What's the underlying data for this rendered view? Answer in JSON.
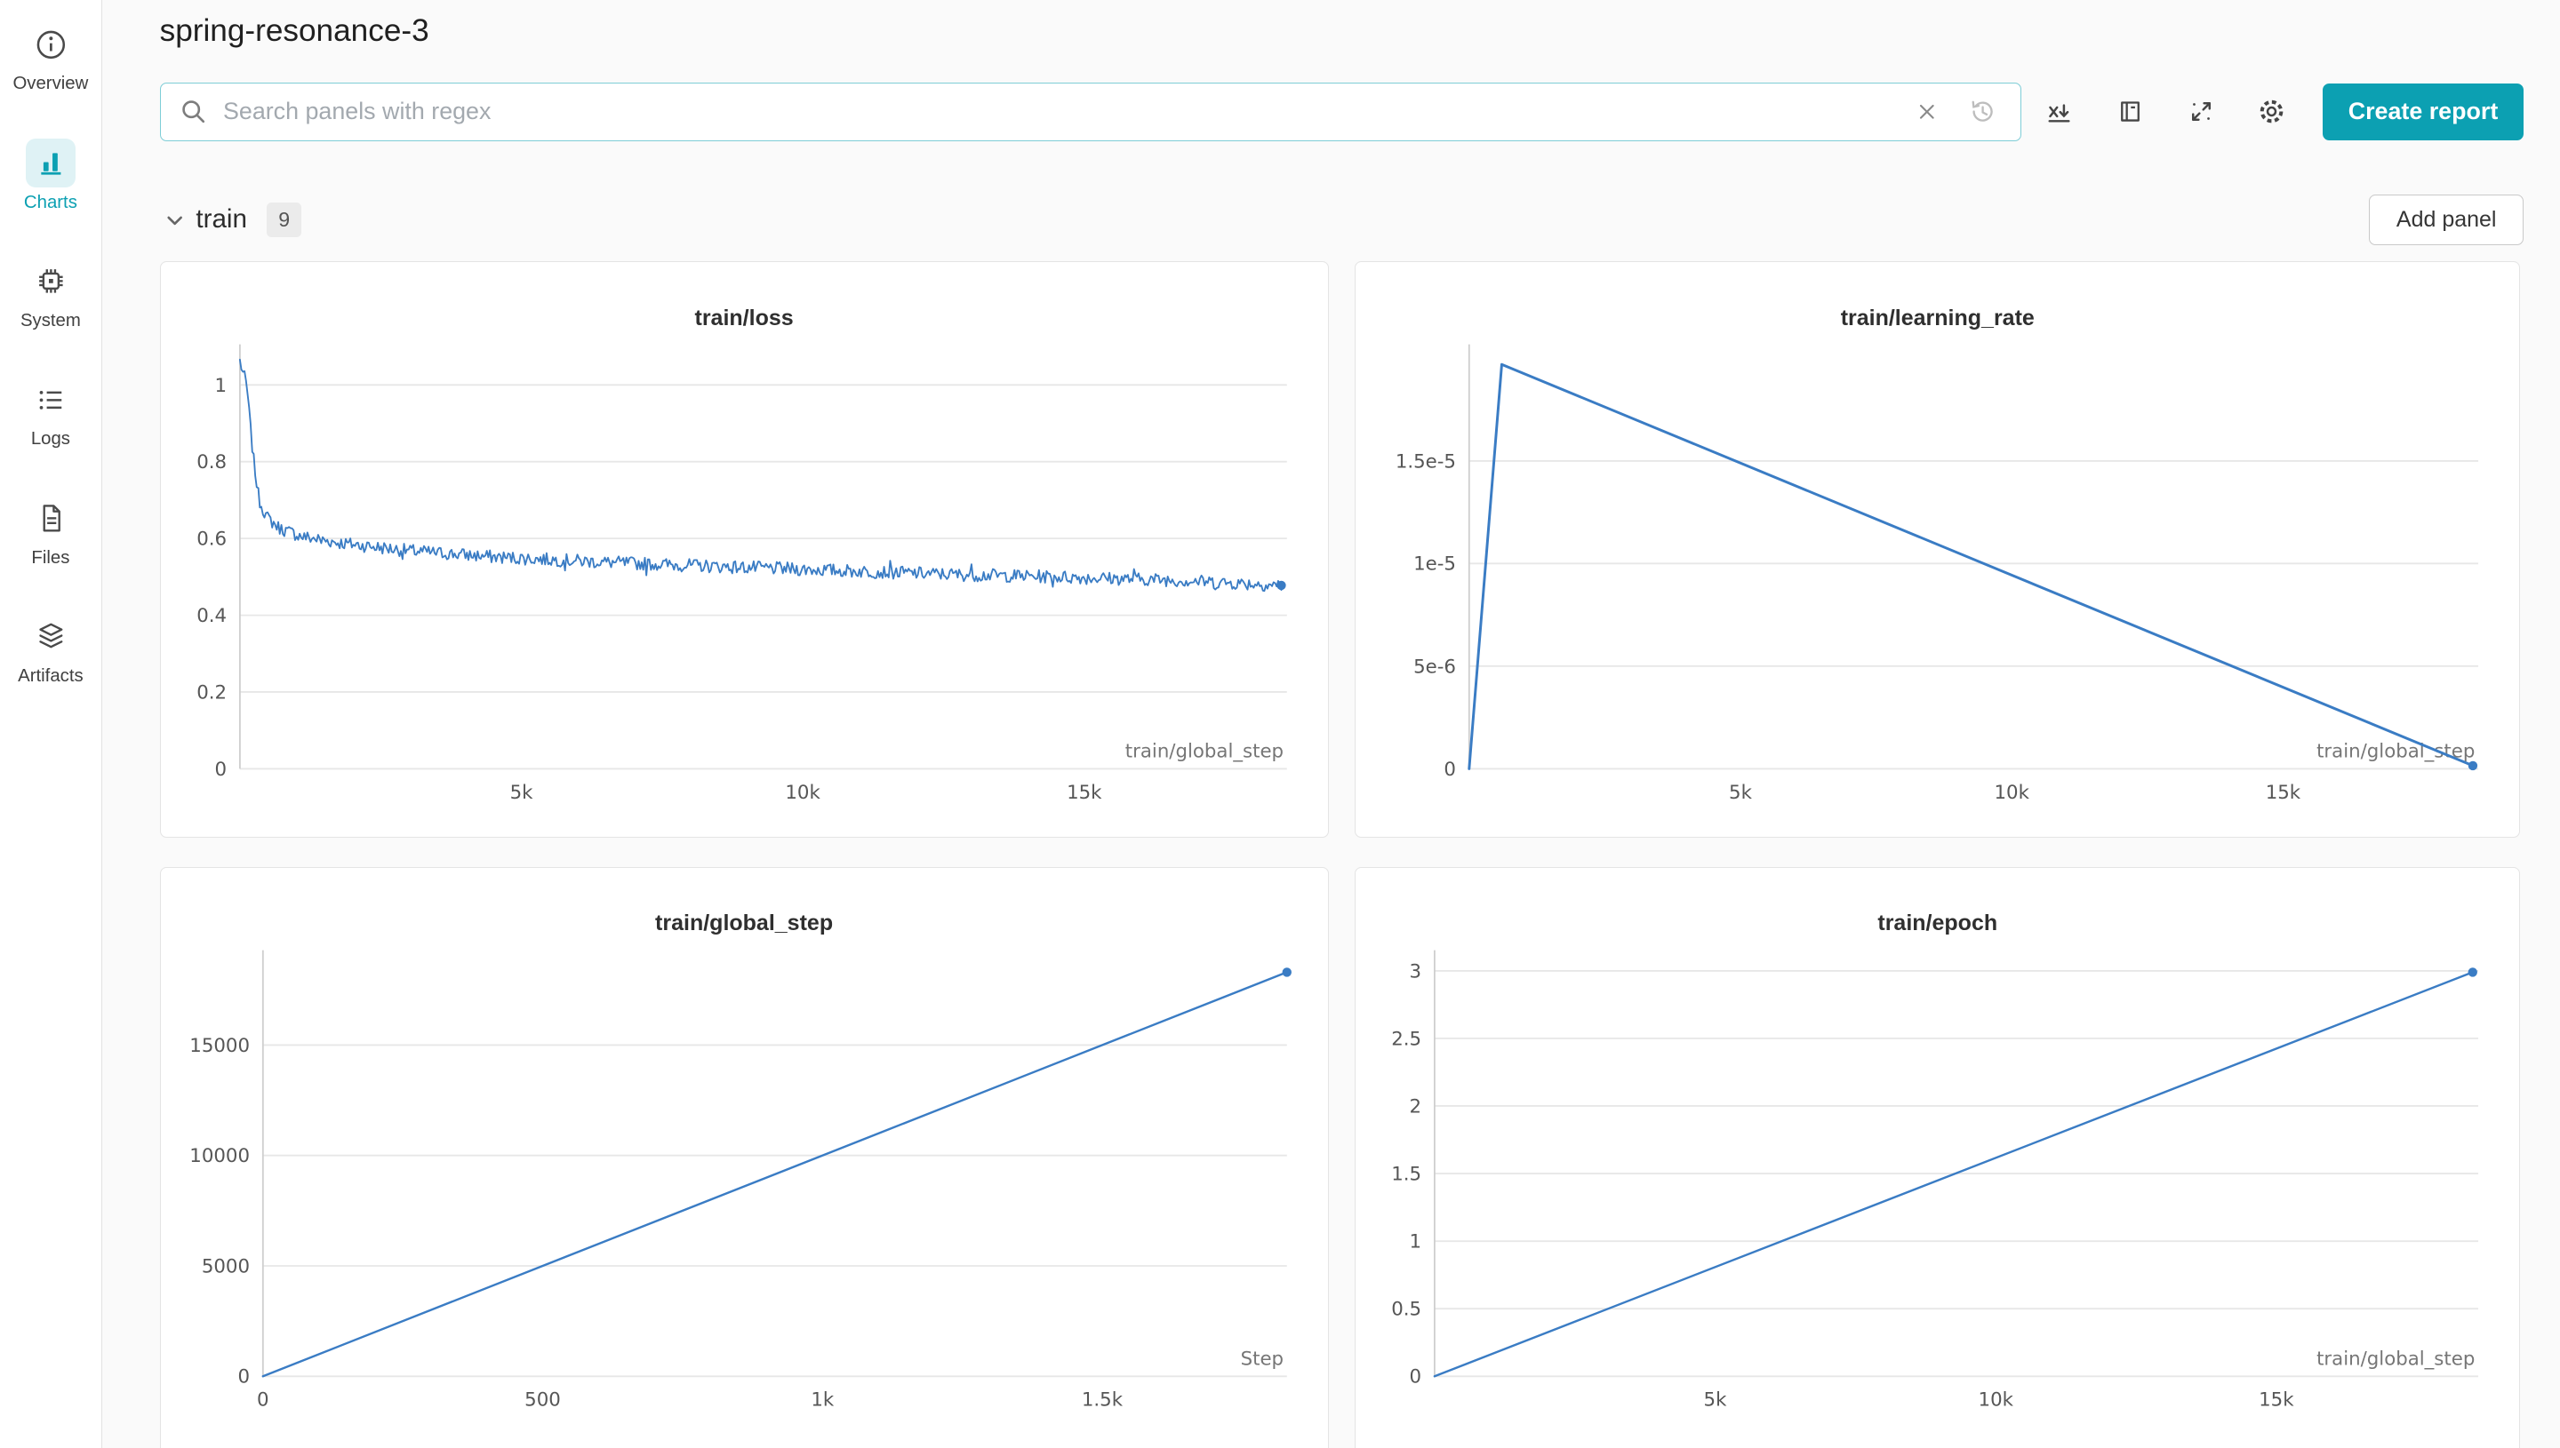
{
  "colors": {
    "accent": "#0ca0b2",
    "accent_bg": "#dff2f5",
    "line": "#3a7cc4",
    "page_bg": "#fafafa",
    "panel_border": "#e4e4e4"
  },
  "header": {
    "title": "spring-resonance-3"
  },
  "sidebar": {
    "items": [
      {
        "label": "Overview",
        "icon": "info-icon",
        "selected": false
      },
      {
        "label": "Charts",
        "icon": "bar-chart-icon",
        "selected": true
      },
      {
        "label": "System",
        "icon": "cpu-icon",
        "selected": false
      },
      {
        "label": "Logs",
        "icon": "list-icon",
        "selected": false
      },
      {
        "label": "Files",
        "icon": "document-icon",
        "selected": false
      },
      {
        "label": "Artifacts",
        "icon": "layers-icon",
        "selected": false
      }
    ]
  },
  "toolbar": {
    "search_placeholder": "Search panels with regex",
    "create_report_label": "Create report",
    "icons": [
      "search-icon",
      "clear-icon",
      "history-icon",
      "x-axis-icon",
      "panel-gallery-icon",
      "expand-icon",
      "settings-gear-icon"
    ]
  },
  "section": {
    "title": "train",
    "count": "9",
    "add_panel_label": "Add panel"
  },
  "chart_data": [
    {
      "type": "line",
      "title": "train/loss",
      "xlabel": "train/global_step",
      "xlim": [
        0,
        18600
      ],
      "ylim": [
        0,
        1.08
      ],
      "x_ticks": [
        {
          "v": 5000,
          "l": "5k"
        },
        {
          "v": 10000,
          "l": "10k"
        },
        {
          "v": 15000,
          "l": "15k"
        }
      ],
      "y_ticks": [
        {
          "v": 0,
          "l": "0"
        },
        {
          "v": 0.2,
          "l": "0.2"
        },
        {
          "v": 0.4,
          "l": "0.4"
        },
        {
          "v": 0.6,
          "l": "0.6"
        },
        {
          "v": 0.8,
          "l": "0.8"
        },
        {
          "v": 1,
          "l": "1"
        }
      ],
      "keypoints": [
        [
          0,
          1.06
        ],
        [
          120,
          1.0
        ],
        [
          230,
          0.82
        ],
        [
          340,
          0.7
        ],
        [
          480,
          0.655
        ],
        [
          700,
          0.627
        ],
        [
          1100,
          0.605
        ],
        [
          1800,
          0.588
        ],
        [
          3000,
          0.568
        ],
        [
          4500,
          0.552
        ],
        [
          6500,
          0.538
        ],
        [
          8500,
          0.527
        ],
        [
          10500,
          0.517
        ],
        [
          12500,
          0.507
        ],
        [
          14500,
          0.5
        ],
        [
          16500,
          0.492
        ],
        [
          18500,
          0.478
        ]
      ],
      "noise": 0.017,
      "samples": 680,
      "line_width": 1,
      "end_dot": true,
      "grid": "horizontal",
      "legend": "none"
    },
    {
      "type": "line",
      "title": "train/learning_rate",
      "xlabel": "train/global_step",
      "xlim": [
        0,
        18600
      ],
      "ylim": [
        0,
        2.02e-05
      ],
      "x_ticks": [
        {
          "v": 5000,
          "l": "5k"
        },
        {
          "v": 10000,
          "l": "10k"
        },
        {
          "v": 15000,
          "l": "15k"
        }
      ],
      "y_ticks": [
        {
          "v": 0,
          "l": "0"
        },
        {
          "v": 5e-06,
          "l": "5e-6"
        },
        {
          "v": 1e-05,
          "l": "1e-5"
        },
        {
          "v": 1.5e-05,
          "l": "1.5e-5"
        }
      ],
      "keypoints": [
        [
          0,
          0
        ],
        [
          600,
          1.97e-05
        ],
        [
          18500,
          1.5e-07
        ]
      ],
      "noise": 0,
      "line_width": 1.6,
      "end_dot": true,
      "grid": "horizontal",
      "legend": "none"
    },
    {
      "type": "line",
      "title": "train/global_step",
      "xlabel": "Step",
      "xlim": [
        0,
        1830
      ],
      "ylim": [
        0,
        18850
      ],
      "x_ticks": [
        {
          "v": 0,
          "l": "0"
        },
        {
          "v": 500,
          "l": "500"
        },
        {
          "v": 1000,
          "l": "1k"
        },
        {
          "v": 1500,
          "l": "1.5k"
        }
      ],
      "y_ticks": [
        {
          "v": 0,
          "l": "0"
        },
        {
          "v": 5000,
          "l": "5000"
        },
        {
          "v": 10000,
          "l": "10000"
        },
        {
          "v": 15000,
          "l": "15000"
        }
      ],
      "keypoints": [
        [
          0,
          0
        ],
        [
          1830,
          18300
        ]
      ],
      "noise": 0,
      "line_width": 1.3,
      "end_dot": true,
      "grid": "horizontal",
      "legend": "none"
    },
    {
      "type": "line",
      "title": "train/epoch",
      "xlabel": "train/global_step",
      "xlim": [
        0,
        18600
      ],
      "ylim": [
        0,
        3.08
      ],
      "x_ticks": [
        {
          "v": 5000,
          "l": "5k"
        },
        {
          "v": 10000,
          "l": "10k"
        },
        {
          "v": 15000,
          "l": "15k"
        }
      ],
      "y_ticks": [
        {
          "v": 0,
          "l": "0"
        },
        {
          "v": 0.5,
          "l": "0.5"
        },
        {
          "v": 1,
          "l": "1"
        },
        {
          "v": 1.5,
          "l": "1.5"
        },
        {
          "v": 2,
          "l": "2"
        },
        {
          "v": 2.5,
          "l": "2.5"
        },
        {
          "v": 3,
          "l": "3"
        }
      ],
      "keypoints": [
        [
          0,
          0
        ],
        [
          18500,
          2.99
        ]
      ],
      "noise": 0,
      "line_width": 1.3,
      "end_dot": true,
      "grid": "horizontal",
      "legend": "none"
    }
  ]
}
